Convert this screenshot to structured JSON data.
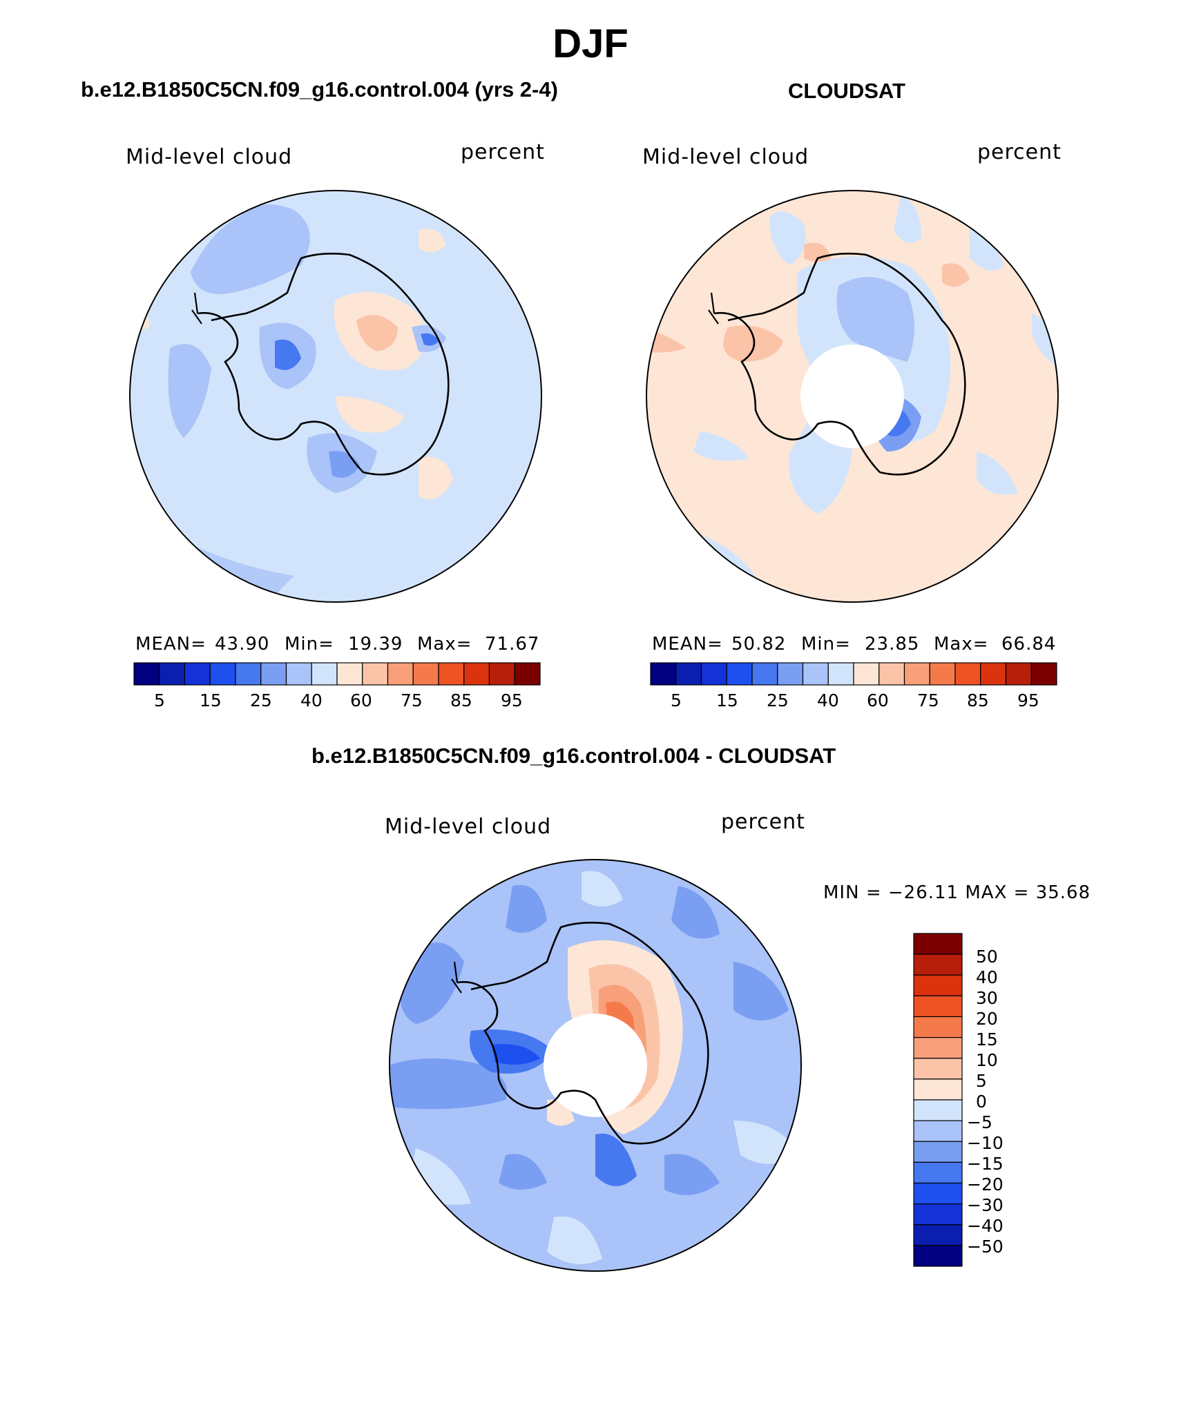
{
  "page": {
    "season_title": "DJF",
    "left_subtitle": "b.e12.B1850C5CN.f09_g16.control.004 (yrs 2-4)",
    "right_subtitle": "CLOUDSAT",
    "diff_subtitle": "b.e12.B1850C5CN.f09_g16.control.004 - CLOUDSAT"
  },
  "panels": {
    "model": {
      "variable": "Mid-level cloud",
      "units": "percent",
      "stats": {
        "mean_label": "MEAN=",
        "mean": "43.90",
        "min_label": "Min=",
        "min": "19.39",
        "max_label": "Max=",
        "max": "71.67"
      }
    },
    "obs": {
      "variable": "Mid-level cloud",
      "units": "percent",
      "stats": {
        "mean_label": "MEAN=",
        "mean": "50.82",
        "min_label": "Min=",
        "min": "23.85",
        "max_label": "Max=",
        "max": "66.84"
      }
    },
    "diff": {
      "variable": "Mid-level cloud",
      "units": "percent",
      "minmax": "MIN = −26.11 MAX =   35.68"
    }
  },
  "colorbars": {
    "main": {
      "colors": [
        "#000080",
        "#0a1fb0",
        "#1432d8",
        "#1e50f0",
        "#4678f0",
        "#7a9ef2",
        "#aac3f8",
        "#d2e4fb",
        "#fde6d6",
        "#fbc4a9",
        "#f8a07a",
        "#f47a4c",
        "#ef5325",
        "#dc330f",
        "#b81f0a",
        "#7a0000"
      ],
      "tick_labels": [
        "5",
        "15",
        "25",
        "40",
        "60",
        "75",
        "85",
        "95"
      ]
    },
    "diff": {
      "colors": [
        "#000080",
        "#0a1fb0",
        "#1432d8",
        "#1e50f0",
        "#4678f0",
        "#7a9ef2",
        "#aac3f8",
        "#d2e4fb",
        "#fde6d6",
        "#fbc4a9",
        "#f8a07a",
        "#f47a4c",
        "#ef5325",
        "#dc330f",
        "#b81f0a",
        "#7a0000"
      ],
      "tick_labels": [
        "50",
        "40",
        "30",
        "20",
        "15",
        "10",
        "5",
        "0",
        "−5",
        "−10",
        "−15",
        "−20",
        "−30",
        "−40",
        "−50"
      ]
    }
  }
}
